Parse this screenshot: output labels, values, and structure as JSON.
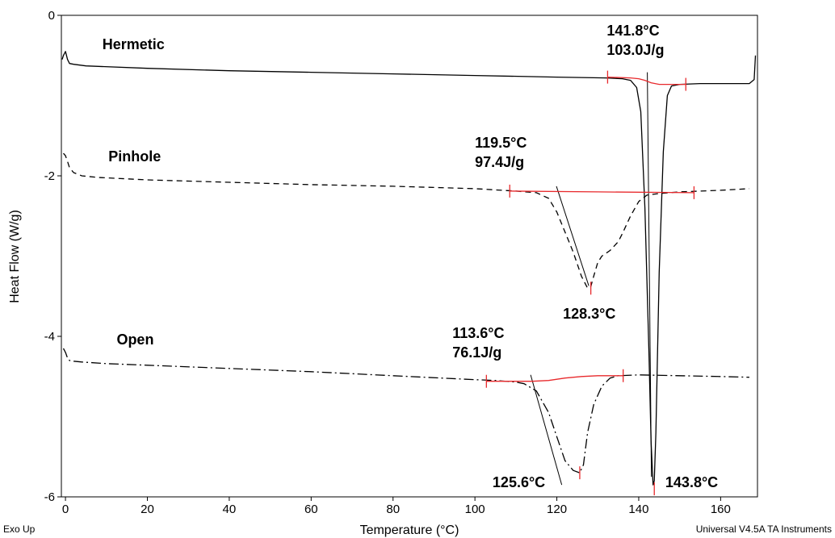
{
  "chart_data": {
    "type": "line",
    "xlabel": "Temperature (°C)",
    "ylabel": "Heat Flow (W/g)",
    "xlim": [
      -1,
      169
    ],
    "ylim": [
      -6,
      0
    ],
    "x_ticks": [
      0,
      20,
      40,
      60,
      80,
      100,
      120,
      140,
      160
    ],
    "y_ticks": [
      0,
      -2,
      -4,
      -6
    ],
    "grid": false,
    "footer_left": "Exo Up",
    "footer_right": "Universal V4.5A TA Instruments",
    "series": [
      {
        "name": "Hermetic",
        "line_style": "solid",
        "x": [
          -0.8,
          -0.5,
          0,
          0.5,
          1,
          2,
          5,
          20,
          40,
          60,
          80,
          100,
          120,
          132,
          136,
          138,
          139.5,
          140.5,
          141.5,
          142.5,
          143,
          143.5,
          143.8,
          144.2,
          145,
          146,
          147,
          148,
          150,
          155,
          160,
          167,
          168.2,
          168.5
        ],
        "y": [
          -0.55,
          -0.5,
          -0.45,
          -0.55,
          -0.6,
          -0.61,
          -0.63,
          -0.66,
          -0.69,
          -0.71,
          -0.73,
          -0.75,
          -0.77,
          -0.78,
          -0.79,
          -0.81,
          -0.9,
          -1.2,
          -2.4,
          -4.2,
          -5.3,
          -5.85,
          -5.8,
          -5.2,
          -3.2,
          -1.7,
          -1.0,
          -0.88,
          -0.86,
          -0.85,
          -0.85,
          -0.85,
          -0.8,
          -0.5
        ]
      },
      {
        "name": "Pinhole",
        "line_style": "dashed",
        "x": [
          -0.5,
          0,
          0.5,
          1,
          2,
          4,
          8,
          20,
          40,
          60,
          80,
          100,
          110,
          115,
          118,
          120,
          122,
          124,
          126,
          127.5,
          128.3,
          129,
          130,
          131,
          133,
          135,
          136,
          138,
          140,
          142,
          145,
          150,
          160,
          167
        ],
        "y": [
          -1.72,
          -1.75,
          -1.82,
          -1.9,
          -1.96,
          -2.0,
          -2.02,
          -2.05,
          -2.08,
          -2.11,
          -2.13,
          -2.16,
          -2.19,
          -2.21,
          -2.28,
          -2.45,
          -2.7,
          -2.95,
          -3.25,
          -3.4,
          -3.38,
          -3.25,
          -3.08,
          -3.0,
          -2.93,
          -2.82,
          -2.72,
          -2.5,
          -2.32,
          -2.24,
          -2.22,
          -2.2,
          -2.18,
          -2.16
        ]
      },
      {
        "name": "Open",
        "line_style": "dashdot",
        "x": [
          -0.5,
          0,
          0.5,
          1,
          2,
          4,
          10,
          20,
          40,
          60,
          80,
          100,
          105,
          110,
          112,
          115,
          118,
          120,
          122,
          124,
          125.6,
          126.5,
          127.5,
          129,
          131,
          133,
          135,
          140,
          150,
          160,
          167
        ],
        "y": [
          -4.15,
          -4.2,
          -4.27,
          -4.3,
          -4.31,
          -4.32,
          -4.34,
          -4.36,
          -4.4,
          -4.44,
          -4.49,
          -4.54,
          -4.55,
          -4.57,
          -4.59,
          -4.68,
          -4.95,
          -5.25,
          -5.55,
          -5.67,
          -5.7,
          -5.6,
          -5.2,
          -4.85,
          -4.62,
          -4.52,
          -4.49,
          -4.48,
          -4.49,
          -4.5,
          -4.51
        ]
      }
    ],
    "series_labels": [
      {
        "text": "Hermetic",
        "x": 9,
        "y": -0.42
      },
      {
        "text": "Pinhole",
        "x": 10.5,
        "y": -1.82
      },
      {
        "text": "Open",
        "x": 12.5,
        "y": -4.1
      }
    ],
    "baselines": [
      {
        "x": [
          132.4,
          138,
          140,
          141.5,
          143,
          145,
          147,
          151.5
        ],
        "y": [
          -0.77,
          -0.78,
          -0.79,
          -0.81,
          -0.84,
          -0.86,
          -0.86,
          -0.86
        ],
        "start_tick": 132.4,
        "end_tick": 151.5
      },
      {
        "x": [
          108.5,
          130,
          153.5
        ],
        "y": [
          -2.19,
          -2.2,
          -2.21
        ],
        "start_tick": 108.5,
        "end_tick": 153.5
      },
      {
        "x": [
          102.8,
          108,
          114,
          118,
          122,
          126,
          130,
          136.2
        ],
        "y": [
          -4.56,
          -4.56,
          -4.56,
          -4.55,
          -4.52,
          -4.5,
          -4.49,
          -4.49
        ],
        "start_tick": 102.8,
        "end_tick": 136.2
      }
    ],
    "peak_markers": [
      {
        "x": 143.8,
        "y": -5.9
      },
      {
        "x": 128.3,
        "y": -3.4
      },
      {
        "x": 125.6,
        "y": -5.7
      }
    ],
    "tangent_lines": [
      {
        "x": [
          142.1,
          143.1
        ],
        "y": [
          -0.71,
          -5.75
        ]
      },
      {
        "x": [
          119.9,
          127.8
        ],
        "y": [
          -2.13,
          -3.37
        ]
      },
      {
        "x": [
          113.6,
          121.2
        ],
        "y": [
          -4.48,
          -5.85
        ]
      }
    ],
    "annotations": [
      {
        "lines": [
          "141.8°C",
          "103.0J/g"
        ],
        "x": 132.2,
        "y": -0.25
      },
      {
        "lines": [
          "119.5°C",
          "97.4J/g"
        ],
        "x": 100,
        "y": -1.65
      },
      {
        "lines": [
          "128.3°C"
        ],
        "x": 121.5,
        "y": -3.78
      },
      {
        "lines": [
          "113.6°C",
          "76.1J/g"
        ],
        "x": 94.5,
        "y": -4.02
      },
      {
        "lines": [
          "125.6°C"
        ],
        "x": 104.3,
        "y": -5.88
      },
      {
        "lines": [
          "143.8°C"
        ],
        "x": 146.5,
        "y": -5.88
      }
    ],
    "colors": {
      "curve": "#000000",
      "baseline": "#e8292c"
    }
  }
}
